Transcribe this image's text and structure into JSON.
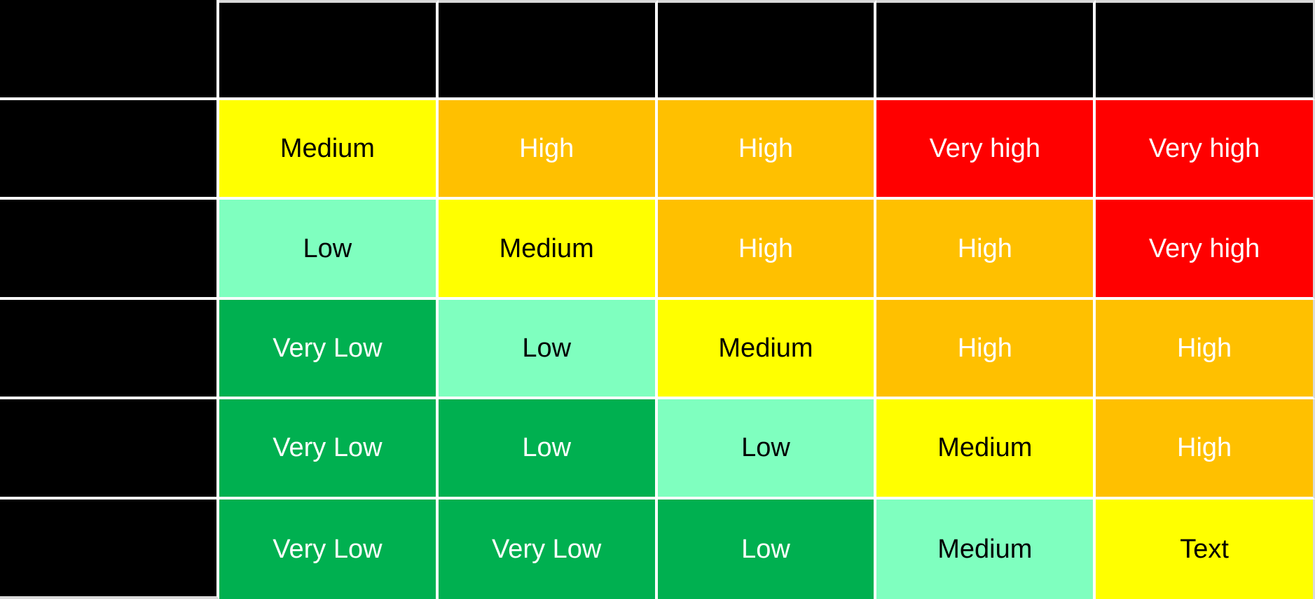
{
  "colors": {
    "black": "#000000",
    "yellow": "#FFFF00",
    "orange": "#FFC000",
    "red": "#FF0000",
    "green": "#00B050",
    "mint": "#7FFFBF",
    "grid_line": "#FFFFFF",
    "outer_line": "#D9D9D9",
    "text_dark": "#000000",
    "text_light": "#FFFFFF"
  },
  "chart_data": {
    "type": "heatmap",
    "title": "",
    "grid": "on",
    "legend_position": "none",
    "column_headers": [
      "",
      "",
      "",
      "",
      ""
    ],
    "row_headers": [
      "",
      "",
      "",
      "",
      ""
    ],
    "cells": [
      [
        "Medium",
        "High",
        "High",
        "Very high",
        "Very high"
      ],
      [
        "Low",
        "Medium",
        "High",
        "High",
        "Very high"
      ],
      [
        "Very Low",
        "Low",
        "Medium",
        "High",
        "High"
      ],
      [
        "Very Low",
        "Low",
        "Low",
        "Medium",
        "High"
      ],
      [
        "Very Low",
        "Very Low",
        "Low",
        "Medium",
        "Text"
      ]
    ],
    "cell_colors": [
      [
        "#FFFF00",
        "#FFC000",
        "#FFC000",
        "#FF0000",
        "#FF0000"
      ],
      [
        "#7FFFBF",
        "#FFFF00",
        "#FFC000",
        "#FFC000",
        "#FF0000"
      ],
      [
        "#00B050",
        "#7FFFBF",
        "#FFFF00",
        "#FFC000",
        "#FFC000"
      ],
      [
        "#00B050",
        "#00B050",
        "#7FFFBF",
        "#FFFF00",
        "#FFC000"
      ],
      [
        "#00B050",
        "#00B050",
        "#00B050",
        "#7FFFBF",
        "#FFFF00"
      ]
    ],
    "value_scale_labels": [
      "Very Low",
      "Low",
      "Medium",
      "High",
      "Very high"
    ]
  },
  "matrix": {
    "corner": {
      "label": ""
    },
    "col_headers": [
      {
        "label": ""
      },
      {
        "label": ""
      },
      {
        "label": ""
      },
      {
        "label": ""
      },
      {
        "label": ""
      }
    ],
    "rows": [
      {
        "header": {
          "label": ""
        },
        "cells": [
          {
            "label": "Medium",
            "bg": "#FFFF00",
            "fg": "#000000"
          },
          {
            "label": "High",
            "bg": "#FFC000",
            "fg": "#FFFFFF"
          },
          {
            "label": "High",
            "bg": "#FFC000",
            "fg": "#FFFFFF"
          },
          {
            "label": "Very high",
            "bg": "#FF0000",
            "fg": "#FFFFFF"
          },
          {
            "label": "Very high",
            "bg": "#FF0000",
            "fg": "#FFFFFF"
          }
        ]
      },
      {
        "header": {
          "label": ""
        },
        "cells": [
          {
            "label": "Low",
            "bg": "#7FFFBF",
            "fg": "#000000"
          },
          {
            "label": "Medium",
            "bg": "#FFFF00",
            "fg": "#000000"
          },
          {
            "label": "High",
            "bg": "#FFC000",
            "fg": "#FFFFFF"
          },
          {
            "label": "High",
            "bg": "#FFC000",
            "fg": "#FFFFFF"
          },
          {
            "label": "Very high",
            "bg": "#FF0000",
            "fg": "#FFFFFF"
          }
        ]
      },
      {
        "header": {
          "label": ""
        },
        "cells": [
          {
            "label": "Very Low",
            "bg": "#00B050",
            "fg": "#FFFFFF"
          },
          {
            "label": "Low",
            "bg": "#7FFFBF",
            "fg": "#000000"
          },
          {
            "label": "Medium",
            "bg": "#FFFF00",
            "fg": "#000000"
          },
          {
            "label": "High",
            "bg": "#FFC000",
            "fg": "#FFFFFF"
          },
          {
            "label": "High",
            "bg": "#FFC000",
            "fg": "#FFFFFF"
          }
        ]
      },
      {
        "header": {
          "label": ""
        },
        "cells": [
          {
            "label": "Very Low",
            "bg": "#00B050",
            "fg": "#FFFFFF"
          },
          {
            "label": "Low",
            "bg": "#00B050",
            "fg": "#FFFFFF"
          },
          {
            "label": "Low",
            "bg": "#7FFFBF",
            "fg": "#000000"
          },
          {
            "label": "Medium",
            "bg": "#FFFF00",
            "fg": "#000000"
          },
          {
            "label": "High",
            "bg": "#FFC000",
            "fg": "#FFFFFF"
          }
        ]
      },
      {
        "header": {
          "label": ""
        },
        "cells": [
          {
            "label": "Very Low",
            "bg": "#00B050",
            "fg": "#FFFFFF"
          },
          {
            "label": "Very Low",
            "bg": "#00B050",
            "fg": "#FFFFFF"
          },
          {
            "label": "Low",
            "bg": "#00B050",
            "fg": "#FFFFFF"
          },
          {
            "label": "Medium",
            "bg": "#7FFFBF",
            "fg": "#000000"
          },
          {
            "label": "Text",
            "bg": "#FFFF00",
            "fg": "#000000"
          }
        ]
      }
    ]
  }
}
